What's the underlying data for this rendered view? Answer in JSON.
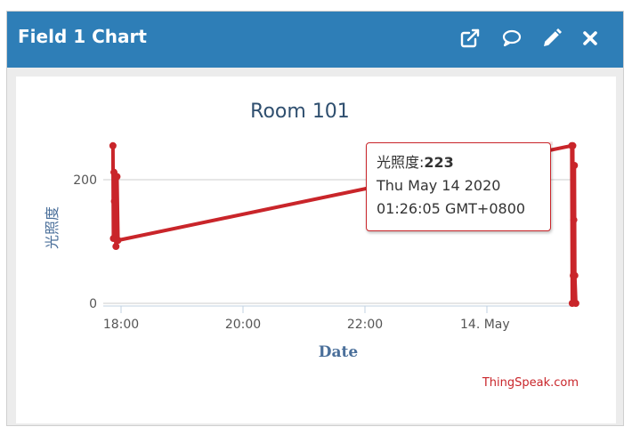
{
  "header": {
    "title": "Field 1 Chart",
    "icons": [
      "external-link-icon",
      "comment-icon",
      "pencil-icon",
      "close-icon"
    ]
  },
  "colors": {
    "header_bg": "#2e7eb7",
    "series": "#c9252a",
    "title": "#2f4f6f",
    "axis_label": "#4a6f9a"
  },
  "chart_data": {
    "type": "line",
    "title": "Room 101",
    "xlabel": "Date",
    "ylabel": "光照度",
    "x_type": "datetime",
    "x_ticks": [
      "18:00",
      "20:00",
      "22:00",
      "14. May"
    ],
    "y_ticks": [
      0,
      200
    ],
    "ylim": [
      0,
      260
    ],
    "grid": true,
    "series": [
      {
        "name": "光照度",
        "points": [
          {
            "x": "2020-05-13T17:52:00+08:00",
            "y": 255
          },
          {
            "x": "2020-05-13T17:52:30+08:00",
            "y": 105
          },
          {
            "x": "2020-05-13T17:53:00+08:00",
            "y": 212
          },
          {
            "x": "2020-05-13T17:53:30+08:00",
            "y": 165
          },
          {
            "x": "2020-05-13T17:55:00+08:00",
            "y": 92
          },
          {
            "x": "2020-05-13T17:56:00+08:00",
            "y": 205
          },
          {
            "x": "2020-05-13T17:57:00+08:00",
            "y": 102
          },
          {
            "x": "2020-05-14T01:23:30+08:00",
            "y": 255
          },
          {
            "x": "2020-05-14T01:24:00+08:00",
            "y": 0
          },
          {
            "x": "2020-05-14T01:24:30+08:00",
            "y": 255
          },
          {
            "x": "2020-05-14T01:25:00+08:00",
            "y": 45
          },
          {
            "x": "2020-05-14T01:25:30+08:00",
            "y": 135
          },
          {
            "x": "2020-05-14T01:26:05+08:00",
            "y": 223
          },
          {
            "x": "2020-05-14T01:26:30+08:00",
            "y": 45
          },
          {
            "x": "2020-05-14T01:27:30+08:00",
            "y": 0
          }
        ]
      }
    ],
    "tooltip": {
      "label": "光照度:",
      "value": "223",
      "line1": "Thu May 14 2020",
      "line2": "01:26:05 GMT+0800"
    },
    "credit": "ThingSpeak.com"
  }
}
